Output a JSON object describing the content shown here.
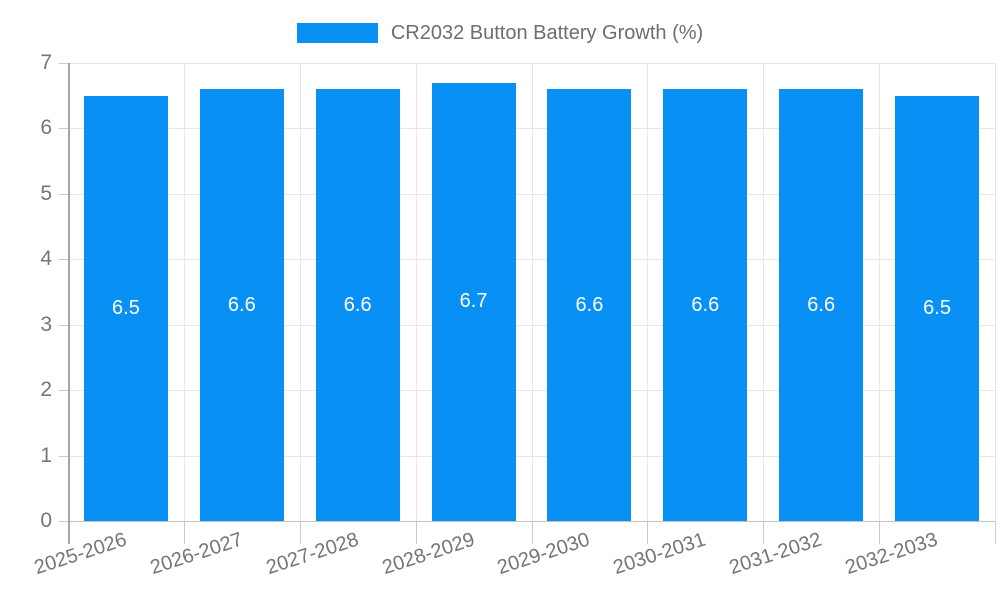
{
  "chart_data": {
    "type": "bar",
    "title": "CR2032 Button Battery Growth (%)",
    "categories": [
      "2025-2026",
      "2026-2027",
      "2027-2028",
      "2028-2029",
      "2029-2030",
      "2030-2031",
      "2031-2032",
      "2032-2033"
    ],
    "values": [
      6.5,
      6.6,
      6.6,
      6.7,
      6.6,
      6.6,
      6.6,
      6.5
    ],
    "bar_labels": [
      "6.5",
      "6.6",
      "6.6",
      "6.7",
      "6.6",
      "6.6",
      "6.6",
      "6.5"
    ],
    "xlabel": "",
    "ylabel": "",
    "ylim": [
      0,
      7
    ],
    "y_ticks": [
      0,
      1,
      2,
      3,
      4,
      5,
      6,
      7
    ],
    "grid": true,
    "legend_position": "top",
    "x_label_rotation_deg": -18,
    "colors": {
      "bar": "#0990f5",
      "bar_label": "#ffffff",
      "grid": "#e7e7e7",
      "baseline": "#c2c2c2",
      "tick": "#cccccc",
      "axis": "#a6a6a6",
      "axis_label": "#757575",
      "legend_text": "#6e6e6e",
      "background": "#ffffff"
    }
  }
}
